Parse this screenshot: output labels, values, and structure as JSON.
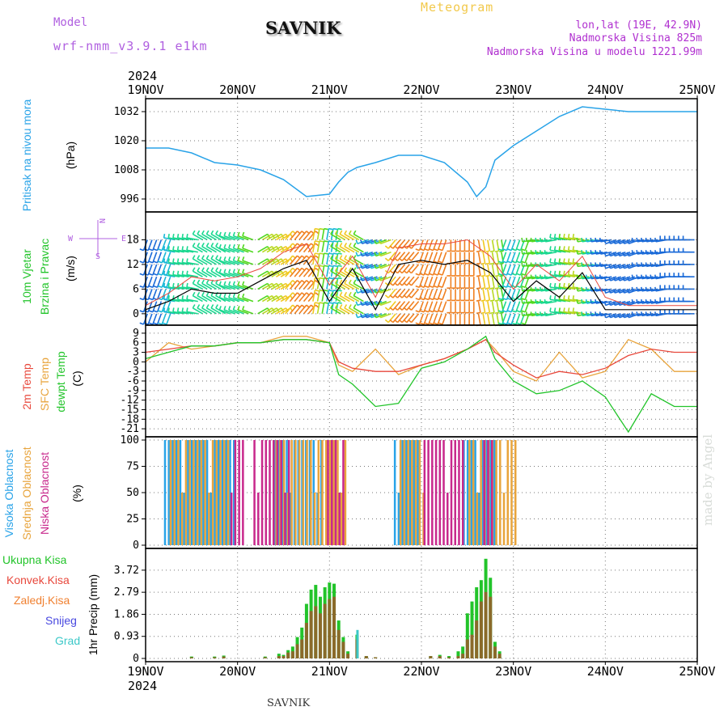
{
  "header": {
    "meteogram_label": "Meteogram",
    "station": "SAVNIK",
    "model_label": "Model",
    "model_name": "wrf-nmm_v3.9.1 e1km",
    "lonlat": "lon,lat (19E, 42.9N)",
    "elevation": "Nadmorska Visina 825m",
    "model_elevation": "Nadmorska Visina u modelu 1221.99m"
  },
  "footer": {
    "station": "SAVNIK",
    "watermark": "made by Angel"
  },
  "colors": {
    "pressure": "#29a3e8",
    "temp_2m": "#e8483c",
    "temp_sfc": "#e8a43c",
    "dewpoint": "#22c42a",
    "cloud_high": "#29a3e8",
    "cloud_mid": "#e8a43c",
    "cloud_low": "#c8288c",
    "precip_total": "#22c42a",
    "precip_conv": "#e8483c",
    "precip_frozen": "#f08030",
    "precip_snow": "#4848e0",
    "precip_hail": "#3cc8c8",
    "wind_direction_label": "#b060e0"
  },
  "chart_data": [
    {
      "type": "line",
      "id": "pressure",
      "labels": [
        "Pritisak na nivou mora",
        "(hPa)"
      ],
      "x_ticks_top": [
        "19NOV",
        "20NOV",
        "21NOV",
        "22NOV",
        "23NOV",
        "24NOV",
        "25NOV"
      ],
      "x_top_year": "2024",
      "ylim": [
        992,
        1036
      ],
      "yticks": [
        996,
        1008,
        1020,
        1032
      ],
      "x": [
        0,
        0.25,
        0.5,
        0.75,
        1,
        1.25,
        1.5,
        1.75,
        2,
        2.1,
        2.2,
        2.3,
        2.5,
        2.75,
        3,
        3.25,
        3.5,
        3.6,
        3.7,
        3.8,
        4,
        4.25,
        4.5,
        4.75,
        5,
        5.25,
        5.5,
        5.75,
        6
      ],
      "series": [
        {
          "values": [
            1017,
            1017,
            1015,
            1011,
            1010,
            1008,
            1004,
            997,
            998,
            1003,
            1007,
            1009,
            1011,
            1014,
            1014,
            1011,
            1003,
            997,
            1001,
            1012,
            1018,
            1024,
            1030,
            1034,
            1033,
            1032,
            1032,
            1032,
            1032
          ]
        }
      ]
    },
    {
      "type": "line",
      "id": "wind",
      "labels": [
        "10m Vjetar",
        "Brzina i Pravac",
        "(m/s)"
      ],
      "direction_key": [
        "N",
        "W",
        "E",
        "S"
      ],
      "ylim": [
        -2,
        24
      ],
      "yticks": [
        0,
        6,
        12,
        18
      ],
      "x": [
        0,
        0.25,
        0.5,
        0.75,
        1,
        1.25,
        1.5,
        1.75,
        2,
        2.25,
        2.5,
        2.75,
        3,
        3.25,
        3.5,
        3.75,
        4,
        4.25,
        4.5,
        4.75,
        5,
        5.25,
        5.5,
        5.75,
        6
      ],
      "series": [
        {
          "name": "speed",
          "values": [
            1,
            3,
            6,
            5,
            5,
            8,
            11,
            13,
            3,
            11,
            1,
            12,
            13,
            12,
            13,
            10,
            3,
            8,
            4,
            10,
            1,
            1,
            1,
            1,
            1
          ]
        },
        {
          "name": "gust",
          "values": [
            2,
            5,
            9,
            8,
            9,
            11,
            15,
            17,
            7,
            14,
            4,
            16,
            17,
            17,
            18,
            14,
            6,
            12,
            8,
            14,
            4,
            2,
            2,
            2,
            2
          ]
        }
      ],
      "barb_colors": [
        "#8a1ad8",
        "#1a6ad8",
        "#1ab8d8",
        "#1ad890",
        "#50d820",
        "#b8d820",
        "#f0c820",
        "#f08020",
        "#e82020"
      ]
    },
    {
      "type": "line",
      "id": "temperature",
      "labels": [
        "2m Temp",
        "SFC Temp",
        "dewpt Temp",
        "(C)"
      ],
      "ylim": [
        -22.5,
        10.5
      ],
      "yticks": [
        9,
        6,
        3,
        0,
        -3,
        -6,
        -9,
        -12,
        -15,
        -18,
        -21
      ],
      "x": [
        0,
        0.25,
        0.5,
        0.75,
        1,
        1.25,
        1.5,
        1.75,
        2,
        2.1,
        2.25,
        2.5,
        2.75,
        3,
        3.25,
        3.5,
        3.7,
        3.8,
        4,
        4.25,
        4.5,
        4.75,
        5,
        5.25,
        5.5,
        5.75,
        6
      ],
      "series": [
        {
          "name": "2m Temp",
          "values": [
            3,
            4,
            5,
            5,
            6,
            6,
            7,
            7,
            6,
            0,
            -2,
            -3,
            -3,
            -1,
            1,
            4,
            7,
            3,
            -1,
            -5,
            -3,
            -4,
            -2,
            2,
            4,
            3,
            3
          ]
        },
        {
          "name": "SFC Temp",
          "values": [
            0,
            6,
            4,
            5,
            6,
            6,
            8,
            8,
            6,
            -1,
            -3,
            4,
            -4,
            -1,
            1,
            4,
            7,
            4,
            -3,
            -6,
            3,
            -5,
            -3,
            7,
            4,
            -3,
            -3
          ]
        },
        {
          "name": "dewpt Temp",
          "values": [
            1,
            3,
            5,
            5,
            6,
            6,
            7,
            7,
            6,
            -4,
            -7,
            -14,
            -13,
            -2,
            0,
            4,
            8,
            1,
            -6,
            -10,
            -9,
            -6,
            -11,
            -22,
            -10,
            -14,
            -14
          ]
        }
      ]
    },
    {
      "type": "bar",
      "id": "clouds",
      "labels": [
        "Visoka Oblacnost",
        "Srednja Oblacnost",
        "Niska Oblacnost",
        "(%)"
      ],
      "ylim": [
        0,
        100
      ],
      "yticks": [
        0,
        25,
        50,
        75,
        100
      ],
      "series": [
        {
          "name": "Visoka Oblacnost",
          "ranges": [
            [
              0.2,
              0.95
            ],
            [
              1.4,
              1.9
            ],
            [
              2.7,
              2.95
            ],
            [
              3.45,
              3.8
            ]
          ],
          "value": 100
        },
        {
          "name": "Srednja Oblacnost",
          "ranges": [
            [
              0.25,
              0.9
            ],
            [
              1.4,
              2.15
            ],
            [
              2.75,
              3.0
            ],
            [
              3.5,
              4.0
            ]
          ],
          "value": 100
        },
        {
          "name": "Niska Oblacnost",
          "ranges": [
            [
              0.9,
              1.05
            ],
            [
              1.15,
              1.55
            ],
            [
              1.95,
              2.15
            ],
            [
              3.0,
              3.45
            ],
            [
              3.65,
              3.75
            ]
          ],
          "value": 100
        }
      ]
    },
    {
      "type": "bar",
      "id": "precip",
      "labels": [
        "Ukupna Kisa",
        "Konvek.Kisa",
        "Zaledj.Kisa",
        "Snijeg",
        "Grad",
        "1hr Precip (mm)"
      ],
      "ylim": [
        0,
        4.5
      ],
      "yticks": [
        0,
        0.93,
        1.86,
        2.79,
        3.72
      ],
      "ytick_labels": [
        "0",
        "0.93",
        "1.86",
        "2.79",
        "3.72"
      ],
      "x_ticks_bottom": [
        "19NOV",
        "20NOV",
        "21NOV",
        "22NOV",
        "23NOV",
        "24NOV",
        "25NOV"
      ],
      "x_bottom_year": "2024",
      "bars": [
        {
          "x": 0.5,
          "total": 0.08,
          "snow": 0.05
        },
        {
          "x": 0.75,
          "total": 0.08,
          "snow": 0.05
        },
        {
          "x": 0.85,
          "total": 0.12,
          "snow": 0.08
        },
        {
          "x": 1.3,
          "total": 0.08,
          "snow": 0.05
        },
        {
          "x": 1.45,
          "total": 0.2,
          "snow": 0.1
        },
        {
          "x": 1.5,
          "total": 0.15,
          "snow": 0.1
        },
        {
          "x": 1.55,
          "total": 0.35,
          "snow": 0.25
        },
        {
          "x": 1.6,
          "total": 0.5,
          "snow": 0.3
        },
        {
          "x": 1.65,
          "total": 0.9,
          "snow": 0.6
        },
        {
          "x": 1.7,
          "total": 1.3,
          "snow": 0.8
        },
        {
          "x": 1.75,
          "total": 2.3,
          "snow": 1.5
        },
        {
          "x": 1.8,
          "total": 2.9,
          "snow": 2.0
        },
        {
          "x": 1.85,
          "total": 3.1,
          "snow": 2.2
        },
        {
          "x": 1.9,
          "total": 2.6,
          "snow": 1.9
        },
        {
          "x": 1.95,
          "total": 3.0,
          "snow": 2.3
        },
        {
          "x": 2.0,
          "total": 3.2,
          "snow": 2.5
        },
        {
          "x": 2.05,
          "total": 3.15,
          "snow": 2.6
        },
        {
          "x": 2.1,
          "total": 1.6,
          "snow": 1.2
        },
        {
          "x": 2.15,
          "total": 0.9,
          "snow": 0.7
        },
        {
          "x": 2.2,
          "total": 0.3,
          "snow": 0.2
        },
        {
          "x": 2.3,
          "total": 1.0,
          "snow": 0.8,
          "hail": 1.2
        },
        {
          "x": 2.4,
          "total": 0.1,
          "snow": 0.1
        },
        {
          "x": 2.5,
          "total": 0.05,
          "snow": 0.05
        },
        {
          "x": 3.1,
          "total": 0.1,
          "snow": 0.1
        },
        {
          "x": 3.2,
          "total": 0.15,
          "snow": 0.1
        },
        {
          "x": 3.3,
          "total": 0.1,
          "snow": 0.05
        },
        {
          "x": 3.4,
          "total": 0.3,
          "snow": 0.1
        },
        {
          "x": 3.45,
          "total": 0.5,
          "snow": 0.2
        },
        {
          "x": 3.5,
          "total": 1.9,
          "snow": 0.8
        },
        {
          "x": 3.55,
          "total": 2.4,
          "snow": 1.0
        },
        {
          "x": 3.6,
          "total": 3.0,
          "snow": 1.6
        },
        {
          "x": 3.65,
          "total": 3.3,
          "snow": 2.4
        },
        {
          "x": 3.7,
          "total": 4.2,
          "snow": 2.8
        },
        {
          "x": 3.75,
          "total": 3.4,
          "snow": 2.6
        },
        {
          "x": 3.8,
          "total": 0.7,
          "snow": 0.5
        },
        {
          "x": 3.85,
          "total": 0.3,
          "snow": 0.2
        }
      ]
    }
  ]
}
